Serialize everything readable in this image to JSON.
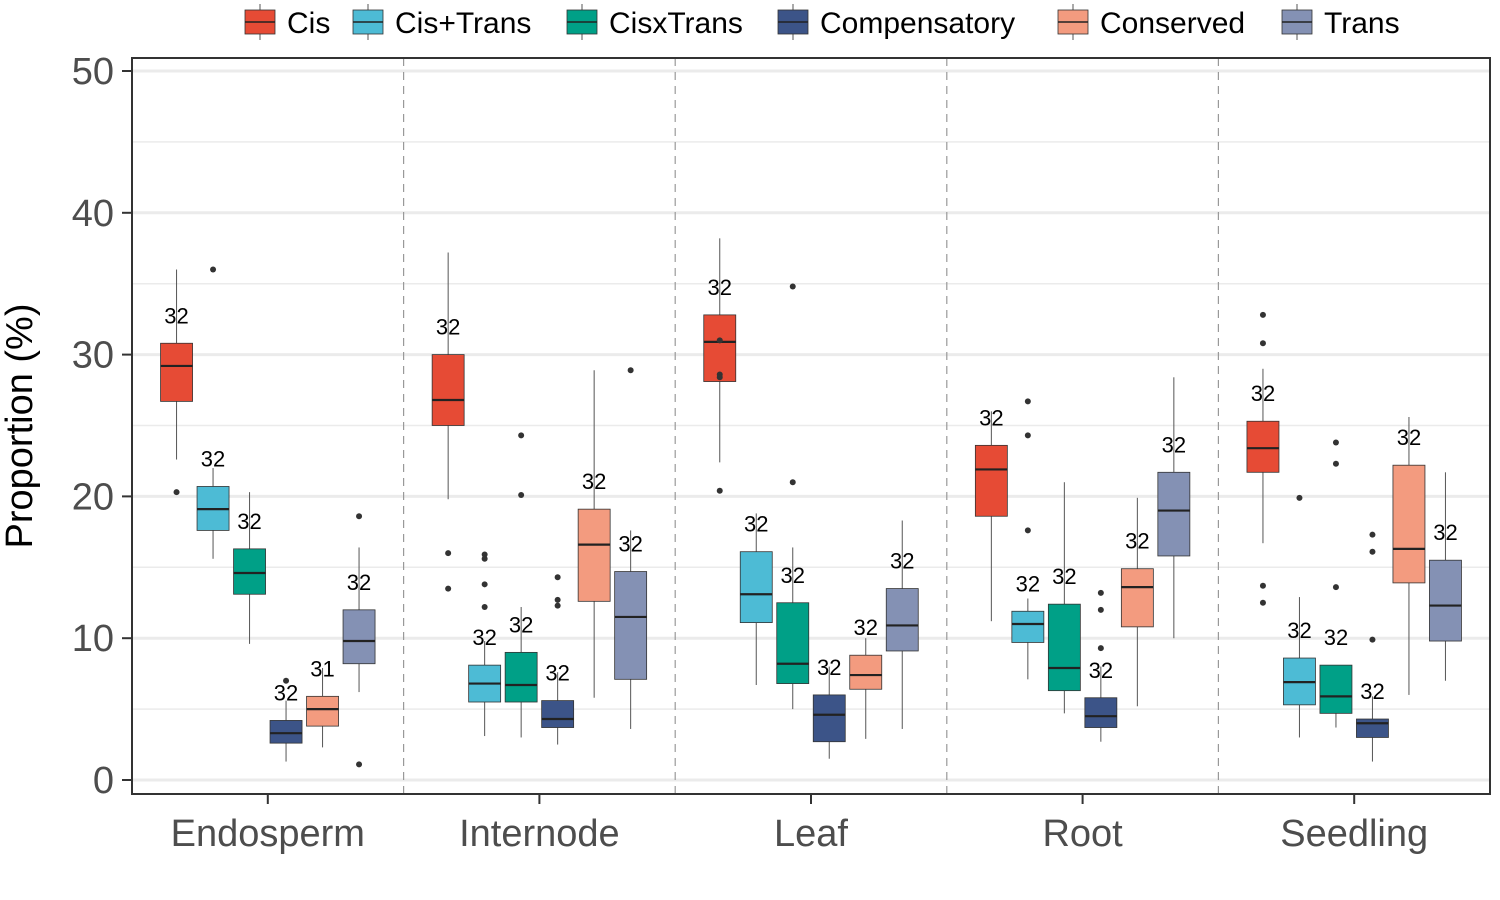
{
  "chart_data": {
    "type": "boxplot",
    "title": "",
    "xlabel": "",
    "ylabel": "Proportion (%)",
    "ylim": [
      -1,
      51
    ],
    "yticks": [
      0,
      10,
      20,
      30,
      40,
      50
    ],
    "grid": true,
    "legend_position": "top",
    "categories": [
      "Endosperm",
      "Internode",
      "Leaf",
      "Root",
      "Seedling"
    ],
    "series": [
      {
        "name": "Cis",
        "color": "#E64B35",
        "boxes": [
          {
            "min": 22.6,
            "q1": 26.7,
            "median": 29.2,
            "q3": 30.8,
            "max": 36.0,
            "outliers": [
              20.3
            ],
            "count": "32"
          },
          {
            "min": 19.8,
            "q1": 25.0,
            "median": 26.8,
            "q3": 30.0,
            "max": 37.2,
            "outliers": [
              16.0,
              13.5
            ],
            "count": "32"
          },
          {
            "min": 22.4,
            "q1": 28.1,
            "median": 30.9,
            "q3": 32.8,
            "max": 38.2,
            "outliers": [
              31.0,
              28.6,
              28.4,
              20.4
            ],
            "count": "32"
          },
          {
            "min": 11.2,
            "q1": 18.6,
            "median": 21.9,
            "q3": 23.6,
            "max": 26.0,
            "outliers": [],
            "count": "32"
          },
          {
            "min": 16.7,
            "q1": 21.7,
            "median": 23.4,
            "q3": 25.3,
            "max": 29.0,
            "outliers": [
              32.8,
              30.8,
              13.7,
              12.5
            ],
            "count": "32"
          }
        ]
      },
      {
        "name": "Cis+Trans",
        "color": "#4DBBD5",
        "boxes": [
          {
            "min": 15.6,
            "q1": 17.6,
            "median": 19.1,
            "q3": 20.7,
            "max": 22.0,
            "outliers": [
              36.0
            ],
            "count": "32"
          },
          {
            "min": 3.1,
            "q1": 5.5,
            "median": 6.8,
            "q3": 8.1,
            "max": 9.8,
            "outliers": [
              15.9,
              15.6,
              13.8,
              12.2
            ],
            "count": "32"
          },
          {
            "min": 6.7,
            "q1": 11.1,
            "median": 13.1,
            "q3": 16.1,
            "max": 18.8,
            "outliers": [],
            "count": "32"
          },
          {
            "min": 7.1,
            "q1": 9.7,
            "median": 11.0,
            "q3": 11.9,
            "max": 12.8,
            "outliers": [
              26.7,
              24.3,
              17.6
            ],
            "count": "32"
          },
          {
            "min": 3.0,
            "q1": 5.3,
            "median": 6.9,
            "q3": 8.6,
            "max": 12.9,
            "outliers": [
              19.9
            ],
            "count": "32"
          }
        ]
      },
      {
        "name": "CisxTrans",
        "color": "#00A087",
        "boxes": [
          {
            "min": 9.6,
            "q1": 13.1,
            "median": 14.6,
            "q3": 16.3,
            "max": 20.3,
            "outliers": [],
            "count": "32"
          },
          {
            "min": 3.0,
            "q1": 5.5,
            "median": 6.7,
            "q3": 9.0,
            "max": 12.2,
            "outliers": [
              24.3,
              20.1
            ],
            "count": "32"
          },
          {
            "min": 5.0,
            "q1": 6.8,
            "median": 8.2,
            "q3": 12.5,
            "max": 16.4,
            "outliers": [
              34.8,
              21.0
            ],
            "count": "32"
          },
          {
            "min": 4.7,
            "q1": 6.3,
            "median": 7.9,
            "q3": 12.4,
            "max": 21.0,
            "outliers": [],
            "count": "32"
          },
          {
            "min": 3.7,
            "q1": 4.7,
            "median": 5.9,
            "q3": 8.1,
            "max": 8.1,
            "outliers": [
              23.8,
              22.3,
              13.6
            ],
            "count": "32"
          }
        ]
      },
      {
        "name": "Compensatory",
        "color": "#3C5488",
        "boxes": [
          {
            "min": 1.3,
            "q1": 2.6,
            "median": 3.3,
            "q3": 4.2,
            "max": 5.6,
            "outliers": [
              7.0
            ],
            "count": "32"
          },
          {
            "min": 2.5,
            "q1": 3.7,
            "median": 4.3,
            "q3": 5.6,
            "max": 7.6,
            "outliers": [
              14.3,
              12.7,
              12.3
            ],
            "count": "32"
          },
          {
            "min": 1.5,
            "q1": 2.7,
            "median": 4.6,
            "q3": 6.0,
            "max": 8.0,
            "outliers": [],
            "count": "32"
          },
          {
            "min": 2.7,
            "q1": 3.7,
            "median": 4.5,
            "q3": 5.8,
            "max": 8.0,
            "outliers": [
              13.2,
              12.0,
              9.3
            ],
            "count": "32"
          },
          {
            "min": 1.3,
            "q1": 3.0,
            "median": 4.0,
            "q3": 4.3,
            "max": 5.9,
            "outliers": [
              17.3,
              16.1,
              9.9
            ],
            "count": "32"
          }
        ]
      },
      {
        "name": "Conserved",
        "color": "#F39B7F",
        "boxes": [
          {
            "min": 2.3,
            "q1": 3.8,
            "median": 5.0,
            "q3": 5.9,
            "max": 7.9,
            "outliers": [],
            "count": "31"
          },
          {
            "min": 5.8,
            "q1": 12.6,
            "median": 16.6,
            "q3": 19.1,
            "max": 28.9,
            "outliers": [],
            "count": "32"
          },
          {
            "min": 2.9,
            "q1": 6.4,
            "median": 7.4,
            "q3": 8.8,
            "max": 10.0,
            "outliers": [],
            "count": "32"
          },
          {
            "min": 5.2,
            "q1": 10.8,
            "median": 13.6,
            "q3": 14.9,
            "max": 19.9,
            "outliers": [],
            "count": "32"
          },
          {
            "min": 6.0,
            "q1": 13.9,
            "median": 16.3,
            "q3": 22.2,
            "max": 25.6,
            "outliers": [],
            "count": "32"
          }
        ]
      },
      {
        "name": "Trans",
        "color": "#8491B4",
        "boxes": [
          {
            "min": 6.2,
            "q1": 8.2,
            "median": 9.8,
            "q3": 12.0,
            "max": 16.4,
            "outliers": [
              18.6,
              1.1
            ],
            "count": "32"
          },
          {
            "min": 3.6,
            "q1": 7.1,
            "median": 11.5,
            "q3": 14.7,
            "max": 17.6,
            "outliers": [
              28.9
            ],
            "count": "32"
          },
          {
            "min": 3.6,
            "q1": 9.1,
            "median": 10.9,
            "q3": 13.5,
            "max": 18.3,
            "outliers": [],
            "count": "32"
          },
          {
            "min": 10.0,
            "q1": 15.8,
            "median": 19.0,
            "q3": 21.7,
            "max": 28.4,
            "outliers": [],
            "count": "32"
          },
          {
            "min": 7.0,
            "q1": 9.8,
            "median": 12.3,
            "q3": 15.5,
            "max": 21.7,
            "outliers": [],
            "count": "32"
          }
        ]
      }
    ]
  }
}
